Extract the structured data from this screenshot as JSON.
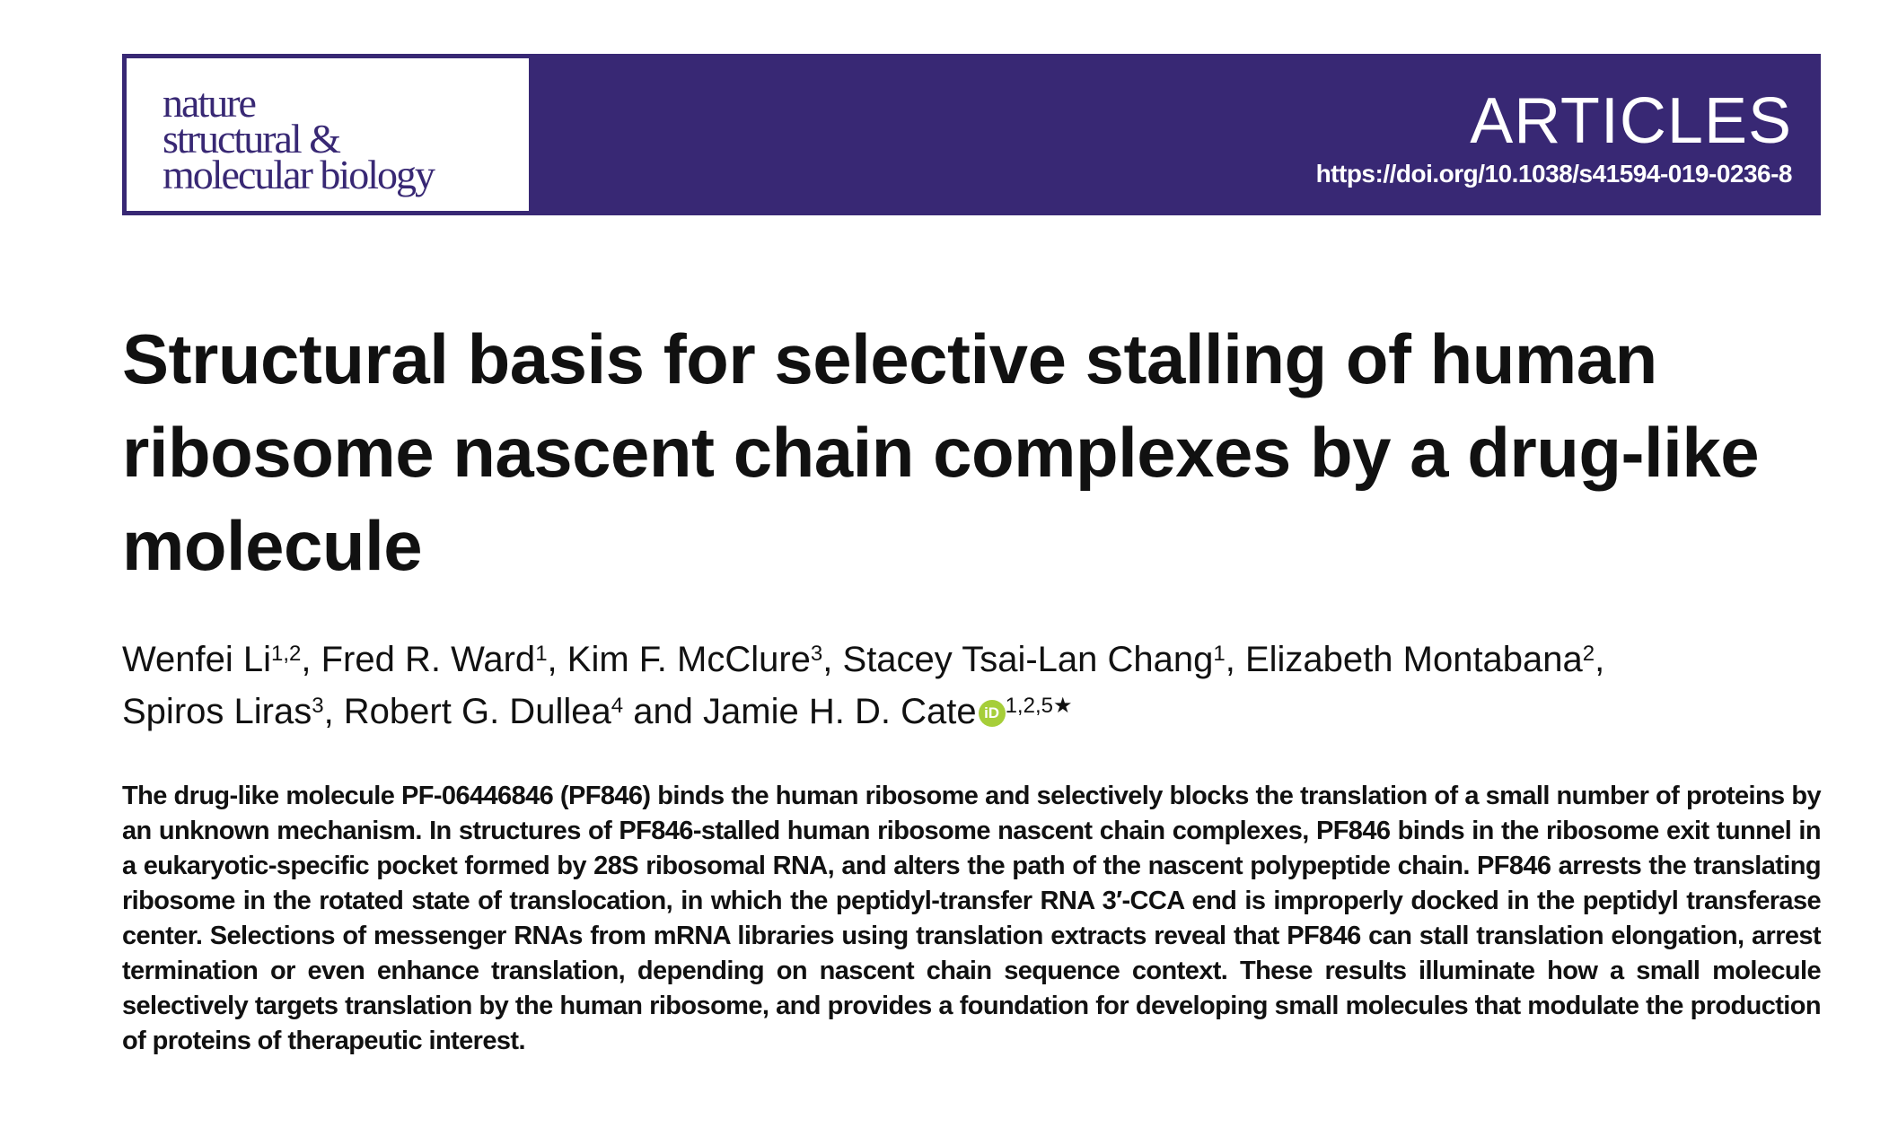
{
  "header": {
    "journal_logo": [
      "nature",
      "structural &",
      "molecular biology"
    ],
    "section": "ARTICLES",
    "doi": "https://doi.org/10.1038/s41594-019-0236-8",
    "colors": {
      "banner": "#382874",
      "orcid": "#a6ce39"
    }
  },
  "title": "Structural basis for selective stalling of human ribosome nascent chain complexes by a drug-like molecule",
  "authors": [
    {
      "name": "Wenfei Li",
      "aff": "1,2",
      "sep": ", "
    },
    {
      "name": "Fred R. Ward",
      "aff": "1",
      "sep": ", "
    },
    {
      "name": "Kim F. McClure",
      "aff": "3",
      "sep": ", "
    },
    {
      "name": "Stacey Tsai-Lan Chang",
      "aff": "1",
      "sep": ", "
    },
    {
      "name": "Elizabeth Montabana",
      "aff": "2",
      "sep": ", "
    },
    {
      "name": "Spiros Liras",
      "aff": "3",
      "sep": ", "
    },
    {
      "name": "Robert G. Dullea",
      "aff": "4",
      "sep": " and "
    },
    {
      "name": "Jamie H. D. Cate",
      "aff": "1,2,5★",
      "sep": "",
      "orcid": "iD"
    }
  ],
  "abstract": "The drug-like molecule PF-06446846 (PF846) binds the human ribosome and selectively blocks the translation of a small number of proteins by an unknown mechanism. In structures of PF846-stalled human ribosome nascent chain complexes, PF846 binds in the ribosome exit tunnel in a eukaryotic-specific pocket formed by 28S ribosomal RNA, and alters the path of the nascent polypeptide chain. PF846 arrests the translating ribosome in the rotated state of translocation, in which the peptidyl-transfer RNA 3′-CCA end is improperly docked in the peptidyl transferase center. Selections of messenger RNAs from mRNA libraries using translation extracts reveal that PF846 can stall translation elongation, arrest termination or even enhance translation, depending on nascent chain sequence context. These results illuminate how a small molecule selectively targets translation by the human ribosome, and provides a foundation for developing small molecules that modulate the production of proteins of therapeutic interest."
}
